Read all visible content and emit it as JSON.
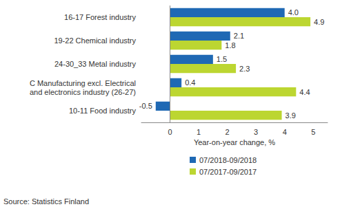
{
  "chart_data": {
    "type": "bar",
    "orientation": "horizontal",
    "categories": [
      "16-17 Forest industry",
      "19-22 Chemical industry",
      "24-30_33 Metal industry",
      "C Manufacturing excl. Electrical\nand electronics industry (26-27)",
      "10-11 Food industry"
    ],
    "series": [
      {
        "name": "07/2018-09/2018",
        "color": "#1f69b4",
        "values": [
          4.0,
          2.1,
          1.5,
          0.4,
          -0.5
        ],
        "value_labels": [
          "4.0",
          "2.1",
          "1.5",
          "0.4",
          "-0.5"
        ]
      },
      {
        "name": "07/2017-09/2017",
        "color": "#bcd631",
        "values": [
          4.9,
          1.8,
          2.3,
          4.4,
          3.9
        ],
        "value_labels": [
          "4.9",
          "1.8",
          "2.3",
          "4.4",
          "3.9"
        ]
      }
    ],
    "x_label": "Year-on-year change, %",
    "xlim": [
      -1,
      5.5
    ],
    "xticks": [
      0,
      1,
      2,
      3,
      4,
      5
    ],
    "grid": false,
    "legend": "bottom",
    "data_labels": true,
    "annotations": [
      "Source: Statistics Finland"
    ]
  }
}
